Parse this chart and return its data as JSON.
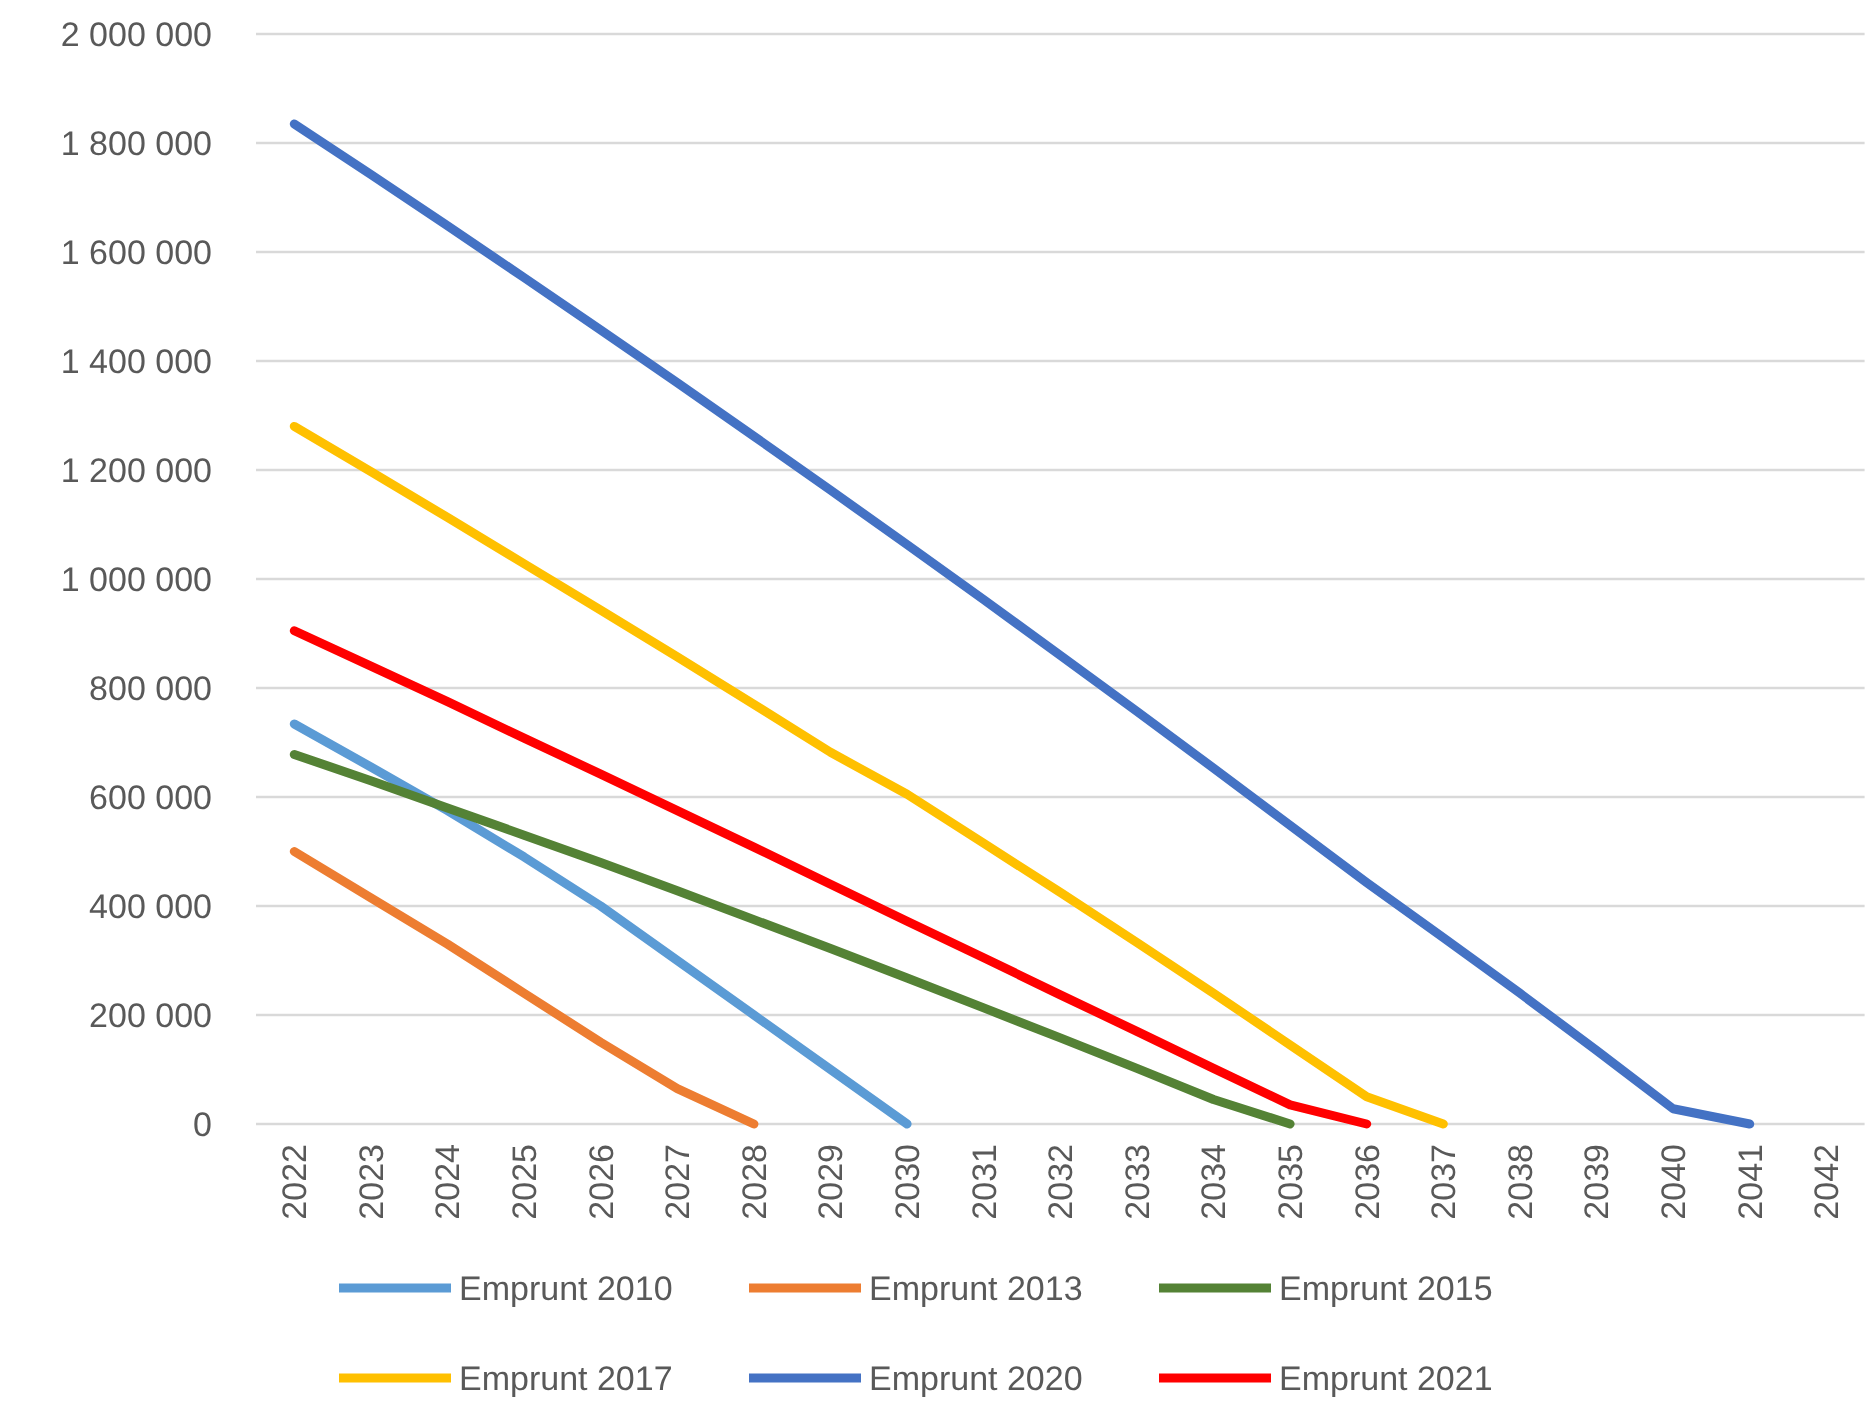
{
  "chart_data": {
    "type": "line",
    "categories": [
      "2022",
      "2023",
      "2024",
      "2025",
      "2026",
      "2027",
      "2028",
      "2029",
      "2030",
      "2031",
      "2032",
      "2033",
      "2034",
      "2035",
      "2036",
      "2037",
      "2038",
      "2039",
      "2040",
      "2041",
      "2042"
    ],
    "series": [
      {
        "name": "Emprunt 2010",
        "color": "#5b9bd5",
        "values": [
          734000,
          655000,
          575000,
          490000,
          400000,
          300000,
          200000,
          100000,
          0,
          null,
          null,
          null,
          null,
          null,
          null,
          null,
          null,
          null,
          null,
          null,
          null
        ]
      },
      {
        "name": "Emprunt 2013",
        "color": "#ed7d31",
        "values": [
          500000,
          415000,
          330000,
          240000,
          150000,
          65000,
          0,
          null,
          null,
          null,
          null,
          null,
          null,
          null,
          null,
          null,
          null,
          null,
          null,
          null,
          null
        ]
      },
      {
        "name": "Emprunt 2015",
        "color": "#548235",
        "values": [
          678000,
          630000,
          580000,
          530000,
          480000,
          428000,
          375000,
          322000,
          268000,
          213000,
          158000,
          102000,
          45000,
          0,
          null,
          null,
          null,
          null,
          null,
          null,
          null
        ]
      },
      {
        "name": "Emprunt 2017",
        "color": "#ffc000",
        "values": [
          1280000,
          1197000,
          1113000,
          1028000,
          943000,
          857000,
          770000,
          682000,
          605000,
          515000,
          425000,
          333000,
          240000,
          145000,
          50000,
          0,
          null,
          null,
          null,
          null,
          null
        ]
      },
      {
        "name": "Emprunt 2020",
        "color": "#4472c4",
        "values": [
          1835000,
          1742000,
          1648000,
          1553000,
          1457000,
          1360000,
          1262000,
          1163000,
          1063000,
          962000,
          860000,
          757000,
          653000,
          548000,
          443000,
          342000,
          240000,
          135000,
          28000,
          0,
          null
        ]
      },
      {
        "name": "Emprunt 2021",
        "color": "#ff0000",
        "values": [
          905000,
          840000,
          775000,
          708000,
          642000,
          575000,
          508000,
          440000,
          372000,
          305000,
          237000,
          170000,
          102000,
          35000,
          0,
          null,
          null,
          null,
          null,
          null,
          null
        ]
      }
    ],
    "ylim": [
      0,
      2000000
    ],
    "yticks": [
      {
        "value": 0,
        "label": "0"
      },
      {
        "value": 200000,
        "label": "200 000"
      },
      {
        "value": 400000,
        "label": "400 000"
      },
      {
        "value": 600000,
        "label": "600 000"
      },
      {
        "value": 800000,
        "label": "800 000"
      },
      {
        "value": 1000000,
        "label": "1 000 000"
      },
      {
        "value": 1200000,
        "label": "1 200 000"
      },
      {
        "value": 1400000,
        "label": "1 400 000"
      },
      {
        "value": 1600000,
        "label": "1 600 000"
      },
      {
        "value": 1800000,
        "label": "1 800 000"
      },
      {
        "value": 2000000,
        "label": "2 000 000"
      }
    ],
    "grid": "y",
    "legend": "bottom",
    "marker": "none",
    "line_style": "solid"
  }
}
